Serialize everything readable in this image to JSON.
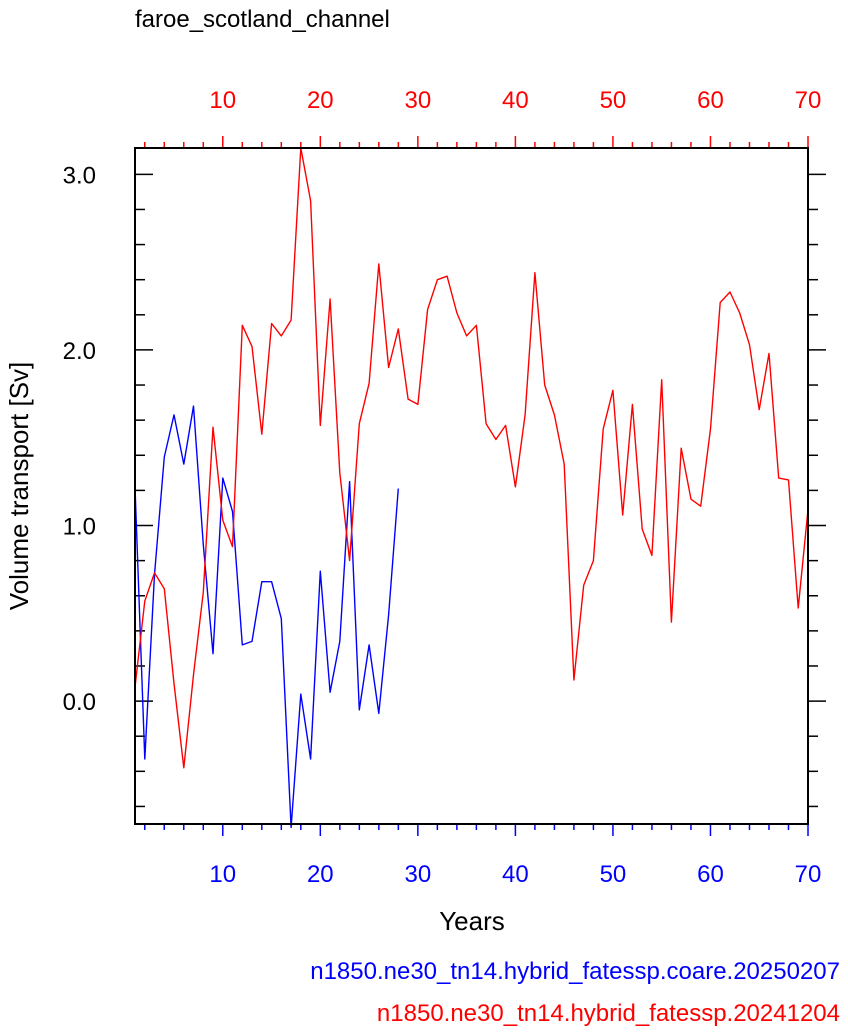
{
  "chart_data": {
    "type": "line",
    "title": "faroe_scotland_channel",
    "xlabel": "Years",
    "ylabel": "Volume transport [Sv]",
    "xlim": [
      1,
      70
    ],
    "ylim": [
      -0.7,
      3.15
    ],
    "y_ticks": [
      "0.0",
      "1.0",
      "2.0",
      "3.0"
    ],
    "bottom_x_ticks": [
      "10",
      "20",
      "30",
      "40",
      "50",
      "60",
      "70"
    ],
    "top_x_ticks": [
      "10",
      "20",
      "30",
      "40",
      "50",
      "60",
      "70"
    ],
    "colors": {
      "series_1": "#0000ff",
      "series_2": "#ff0000",
      "axis": "#000000"
    },
    "series": [
      {
        "name": "n1850.ne30_tn14.hybrid_fatessp.coare.20250207",
        "color": "#0000ff",
        "x": [
          1,
          2,
          3,
          4,
          5,
          6,
          7,
          8,
          9,
          10,
          11,
          12,
          13,
          14,
          15,
          16,
          17,
          18,
          19,
          20,
          21,
          22,
          23,
          24,
          25,
          26,
          27,
          28
        ],
        "values": [
          1.22,
          -0.33,
          0.72,
          1.39,
          1.63,
          1.35,
          1.68,
          0.89,
          0.27,
          1.27,
          1.08,
          0.32,
          0.34,
          0.68,
          0.68,
          0.47,
          -0.72,
          0.04,
          -0.33,
          0.74,
          0.05,
          0.34,
          1.25,
          -0.05,
          0.32,
          -0.07,
          0.49,
          1.21
        ]
      },
      {
        "name": "n1850.ne30_tn14.hybrid_fatessp.20241204",
        "color": "#ff0000",
        "x": [
          1,
          2,
          3,
          4,
          5,
          6,
          7,
          8,
          9,
          10,
          11,
          12,
          13,
          14,
          15,
          16,
          17,
          18,
          19,
          20,
          21,
          22,
          23,
          24,
          25,
          26,
          27,
          28,
          29,
          30,
          31,
          32,
          33,
          34,
          35,
          36,
          37,
          38,
          39,
          40,
          41,
          42,
          43,
          44,
          45,
          46,
          47,
          48,
          49,
          50,
          51,
          52,
          53,
          54,
          55,
          56,
          57,
          58,
          59,
          60,
          61,
          62,
          63,
          64,
          65,
          66,
          67,
          68,
          69,
          70
        ],
        "values": [
          0.08,
          0.57,
          0.73,
          0.64,
          0.1,
          -0.38,
          0.15,
          0.62,
          1.56,
          1.03,
          0.88,
          2.14,
          2.02,
          1.52,
          2.15,
          2.08,
          2.17,
          3.15,
          2.85,
          1.57,
          2.29,
          1.3,
          0.8,
          1.58,
          1.81,
          2.49,
          1.9,
          2.12,
          1.72,
          1.69,
          2.23,
          2.4,
          2.42,
          2.21,
          2.08,
          2.14,
          1.58,
          1.49,
          1.57,
          1.22,
          1.63,
          2.44,
          1.8,
          1.63,
          1.35,
          0.12,
          0.66,
          0.8,
          1.55,
          1.77,
          1.06,
          1.69,
          0.98,
          0.83,
          1.83,
          0.45,
          1.44,
          1.15,
          1.11,
          1.55,
          2.27,
          2.33,
          2.21,
          2.03,
          1.66,
          1.98,
          1.27,
          1.26,
          0.53,
          1.09
        ]
      }
    ]
  }
}
